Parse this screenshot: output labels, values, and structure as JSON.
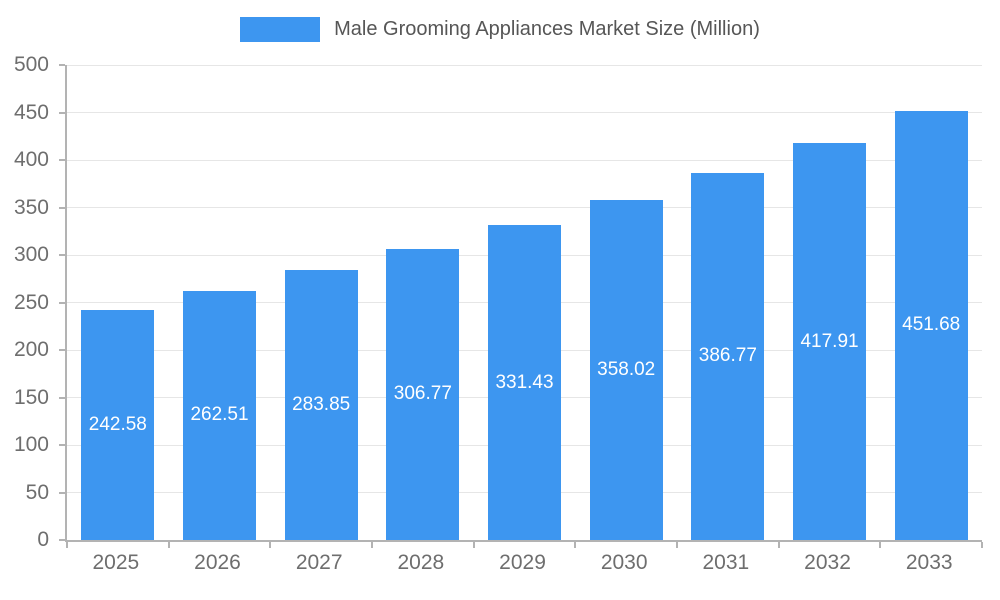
{
  "chart_data": {
    "type": "bar",
    "title": "Male Grooming Appliances Market Size (Million)",
    "categories": [
      "2025",
      "2026",
      "2027",
      "2028",
      "2029",
      "2030",
      "2031",
      "2032",
      "2033"
    ],
    "values": [
      242.58,
      262.51,
      283.85,
      306.77,
      331.43,
      358.02,
      386.77,
      417.91,
      451.68
    ],
    "value_labels": [
      "242.58",
      "262.51",
      "283.85",
      "306.77",
      "331.43",
      "358.02",
      "386.77",
      "417.91",
      "451.68"
    ],
    "xlabel": "",
    "ylabel": "",
    "ylim": [
      0,
      500
    ],
    "ytick_step": 50,
    "ytick_labels": [
      "0",
      "50",
      "100",
      "150",
      "200",
      "250",
      "300",
      "350",
      "400",
      "450",
      "500"
    ],
    "grid": true,
    "legend_position": "top",
    "colors": {
      "bar": "#3D96F0",
      "bar_value_label": "#ffffff",
      "axis_text": "#6e6e6e",
      "title_text": "#565656",
      "gridline": "#e6e6e6",
      "axis_line": "#b3b3b3"
    }
  }
}
